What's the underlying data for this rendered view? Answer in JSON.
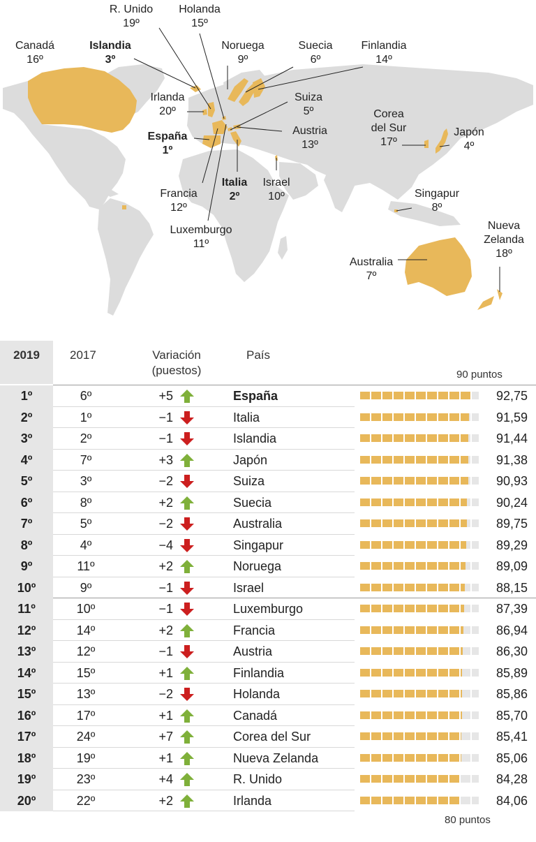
{
  "chart_data": [
    {
      "type": "map",
      "labels": [
        {
          "country": "R. Unido",
          "rank": "19º",
          "bold": false
        },
        {
          "country": "Holanda",
          "rank": "15º",
          "bold": false
        },
        {
          "country": "Canadá",
          "rank": "16º",
          "bold": false
        },
        {
          "country": "Islandia",
          "rank": "3º",
          "bold": true
        },
        {
          "country": "Noruega",
          "rank": "9º",
          "bold": false
        },
        {
          "country": "Suecia",
          "rank": "6º",
          "bold": false
        },
        {
          "country": "Finlandia",
          "rank": "14º",
          "bold": false
        },
        {
          "country": "Irlanda",
          "rank": "20º",
          "bold": false
        },
        {
          "country": "Suiza",
          "rank": "5º",
          "bold": false
        },
        {
          "country": "España",
          "rank": "1º",
          "bold": true
        },
        {
          "country": "Austria",
          "rank": "13º",
          "bold": false
        },
        {
          "country": "Corea del Sur",
          "rank": "17º",
          "bold": false
        },
        {
          "country": "Japón",
          "rank": "4º",
          "bold": false
        },
        {
          "country": "Italia",
          "rank": "2º",
          "bold": true
        },
        {
          "country": "Israel",
          "rank": "10º",
          "bold": false
        },
        {
          "country": "Francia",
          "rank": "12º",
          "bold": false
        },
        {
          "country": "Singapur",
          "rank": "8º",
          "bold": false
        },
        {
          "country": "Luxemburgo",
          "rank": "11º",
          "bold": false
        },
        {
          "country": "Nueva Zelanda",
          "rank": "18º",
          "bold": false
        },
        {
          "country": "Australia",
          "rank": "7º",
          "bold": false
        }
      ],
      "colors": {
        "land": "#dcdcdc",
        "highlight": "#e8b85a",
        "ocean": "#ffffff"
      }
    },
    {
      "type": "table",
      "headers": {
        "col_2019": "2019",
        "col_2017": "2017",
        "col_var_1": "Variación",
        "col_var_2": "(puestos)",
        "col_pais": "País"
      },
      "axis_labels": {
        "top": "90 puntos",
        "bottom": "80 puntos"
      },
      "bar_range": [
        0,
        100
      ],
      "colors": {
        "bar": "#e8b85a",
        "track": "#e6e6e6",
        "up": "#7fb03a",
        "down": "#cc1f1f",
        "rank_bg": "#e6e6e6"
      },
      "rows": [
        {
          "rank": "1º",
          "prev": "6º",
          "var": "+5",
          "dir": "up",
          "country": "España",
          "score": 92.75,
          "score_label": "92,75",
          "highlight": true
        },
        {
          "rank": "2º",
          "prev": "1º",
          "var": "−1",
          "dir": "down",
          "country": "Italia",
          "score": 91.59,
          "score_label": "91,59"
        },
        {
          "rank": "3º",
          "prev": "2º",
          "var": "−1",
          "dir": "down",
          "country": "Islandia",
          "score": 91.44,
          "score_label": "91,44"
        },
        {
          "rank": "4º",
          "prev": "7º",
          "var": "+3",
          "dir": "up",
          "country": "Japón",
          "score": 91.38,
          "score_label": "91,38"
        },
        {
          "rank": "5º",
          "prev": "3º",
          "var": "−2",
          "dir": "down",
          "country": "Suiza",
          "score": 90.93,
          "score_label": "90,93"
        },
        {
          "rank": "6º",
          "prev": "8º",
          "var": "+2",
          "dir": "up",
          "country": "Suecia",
          "score": 90.24,
          "score_label": "90,24"
        },
        {
          "rank": "7º",
          "prev": "5º",
          "var": "−2",
          "dir": "down",
          "country": "Australia",
          "score": 89.75,
          "score_label": "89,75"
        },
        {
          "rank": "8º",
          "prev": "4º",
          "var": "−4",
          "dir": "down",
          "country": "Singapur",
          "score": 89.29,
          "score_label": "89,29"
        },
        {
          "rank": "9º",
          "prev": "11º",
          "var": "+2",
          "dir": "up",
          "country": "Noruega",
          "score": 89.09,
          "score_label": "89,09"
        },
        {
          "rank": "10º",
          "prev": "9º",
          "var": "−1",
          "dir": "down",
          "country": "Israel",
          "score": 88.15,
          "score_label": "88,15"
        },
        {
          "rank": "11º",
          "prev": "10º",
          "var": "−1",
          "dir": "down",
          "country": "Luxemburgo",
          "score": 87.39,
          "score_label": "87,39"
        },
        {
          "rank": "12º",
          "prev": "14º",
          "var": "+2",
          "dir": "up",
          "country": "Francia",
          "score": 86.94,
          "score_label": "86,94"
        },
        {
          "rank": "13º",
          "prev": "12º",
          "var": "−1",
          "dir": "down",
          "country": "Austria",
          "score": 86.3,
          "score_label": "86,30"
        },
        {
          "rank": "14º",
          "prev": "15º",
          "var": "+1",
          "dir": "up",
          "country": "Finlandia",
          "score": 85.89,
          "score_label": "85,89"
        },
        {
          "rank": "15º",
          "prev": "13º",
          "var": "−2",
          "dir": "down",
          "country": "Holanda",
          "score": 85.86,
          "score_label": "85,86"
        },
        {
          "rank": "16º",
          "prev": "17º",
          "var": "+1",
          "dir": "up",
          "country": "Canadá",
          "score": 85.7,
          "score_label": "85,70"
        },
        {
          "rank": "17º",
          "prev": "24º",
          "var": "+7",
          "dir": "up",
          "country": "Corea del Sur",
          "score": 85.41,
          "score_label": "85,41"
        },
        {
          "rank": "18º",
          "prev": "19º",
          "var": "+1",
          "dir": "up",
          "country": "Nueva Zelanda",
          "score": 85.06,
          "score_label": "85,06"
        },
        {
          "rank": "19º",
          "prev": "23º",
          "var": "+4",
          "dir": "up",
          "country": "R. Unido",
          "score": 84.28,
          "score_label": "84,28"
        },
        {
          "rank": "20º",
          "prev": "22º",
          "var": "+2",
          "dir": "up",
          "country": "Irlanda",
          "score": 84.06,
          "score_label": "84,06"
        }
      ]
    }
  ]
}
